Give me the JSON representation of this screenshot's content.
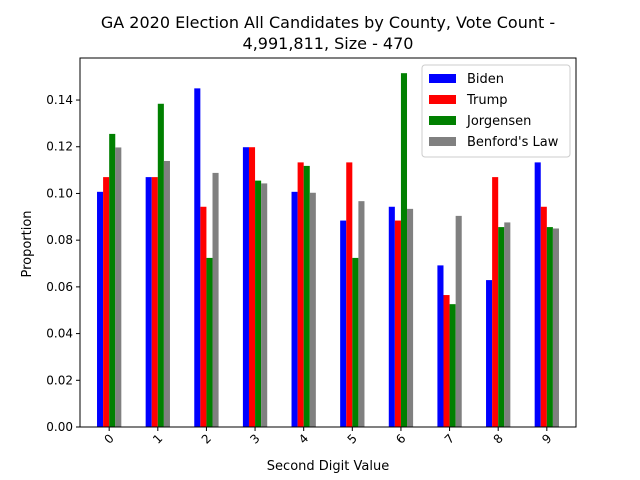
{
  "chart_data": {
    "type": "bar",
    "title_lines": [
      "GA 2020 Election All Candidates by County, Vote Count -",
      "4,991,811, Size - 470"
    ],
    "xlabel": "Second Digit Value",
    "ylabel": "Proportion",
    "ylim": [
      0,
      0.158
    ],
    "yticks": [
      0.0,
      0.02,
      0.04,
      0.06,
      0.08,
      0.1,
      0.12,
      0.14
    ],
    "ytick_labels": [
      "0.00",
      "0.02",
      "0.04",
      "0.06",
      "0.08",
      "0.10",
      "0.12",
      "0.14"
    ],
    "categories": [
      "0",
      "1",
      "2",
      "3",
      "4",
      "5",
      "6",
      "7",
      "8",
      "9"
    ],
    "legend_position": "top-right",
    "grid": false,
    "series": [
      {
        "name": "Biden",
        "color": "#0000ff",
        "values": [
          0.1007,
          0.107,
          0.145,
          0.1198,
          0.1007,
          0.0884,
          0.0943,
          0.0692,
          0.0629,
          0.1133
        ]
      },
      {
        "name": "Trump",
        "color": "#ff0000",
        "values": [
          0.107,
          0.107,
          0.0943,
          0.1198,
          0.1133,
          0.1133,
          0.0884,
          0.0565,
          0.107,
          0.0943
        ]
      },
      {
        "name": "Jorgensen",
        "color": "#008000",
        "values": [
          0.1255,
          0.1384,
          0.0724,
          0.1055,
          0.1118,
          0.0724,
          0.1515,
          0.0526,
          0.0856,
          0.0856
        ]
      },
      {
        "name": "Benford's Law",
        "color": "#808080",
        "values": [
          0.1197,
          0.1139,
          0.1088,
          0.1043,
          0.1003,
          0.0967,
          0.0934,
          0.0904,
          0.0876,
          0.085
        ]
      }
    ]
  }
}
